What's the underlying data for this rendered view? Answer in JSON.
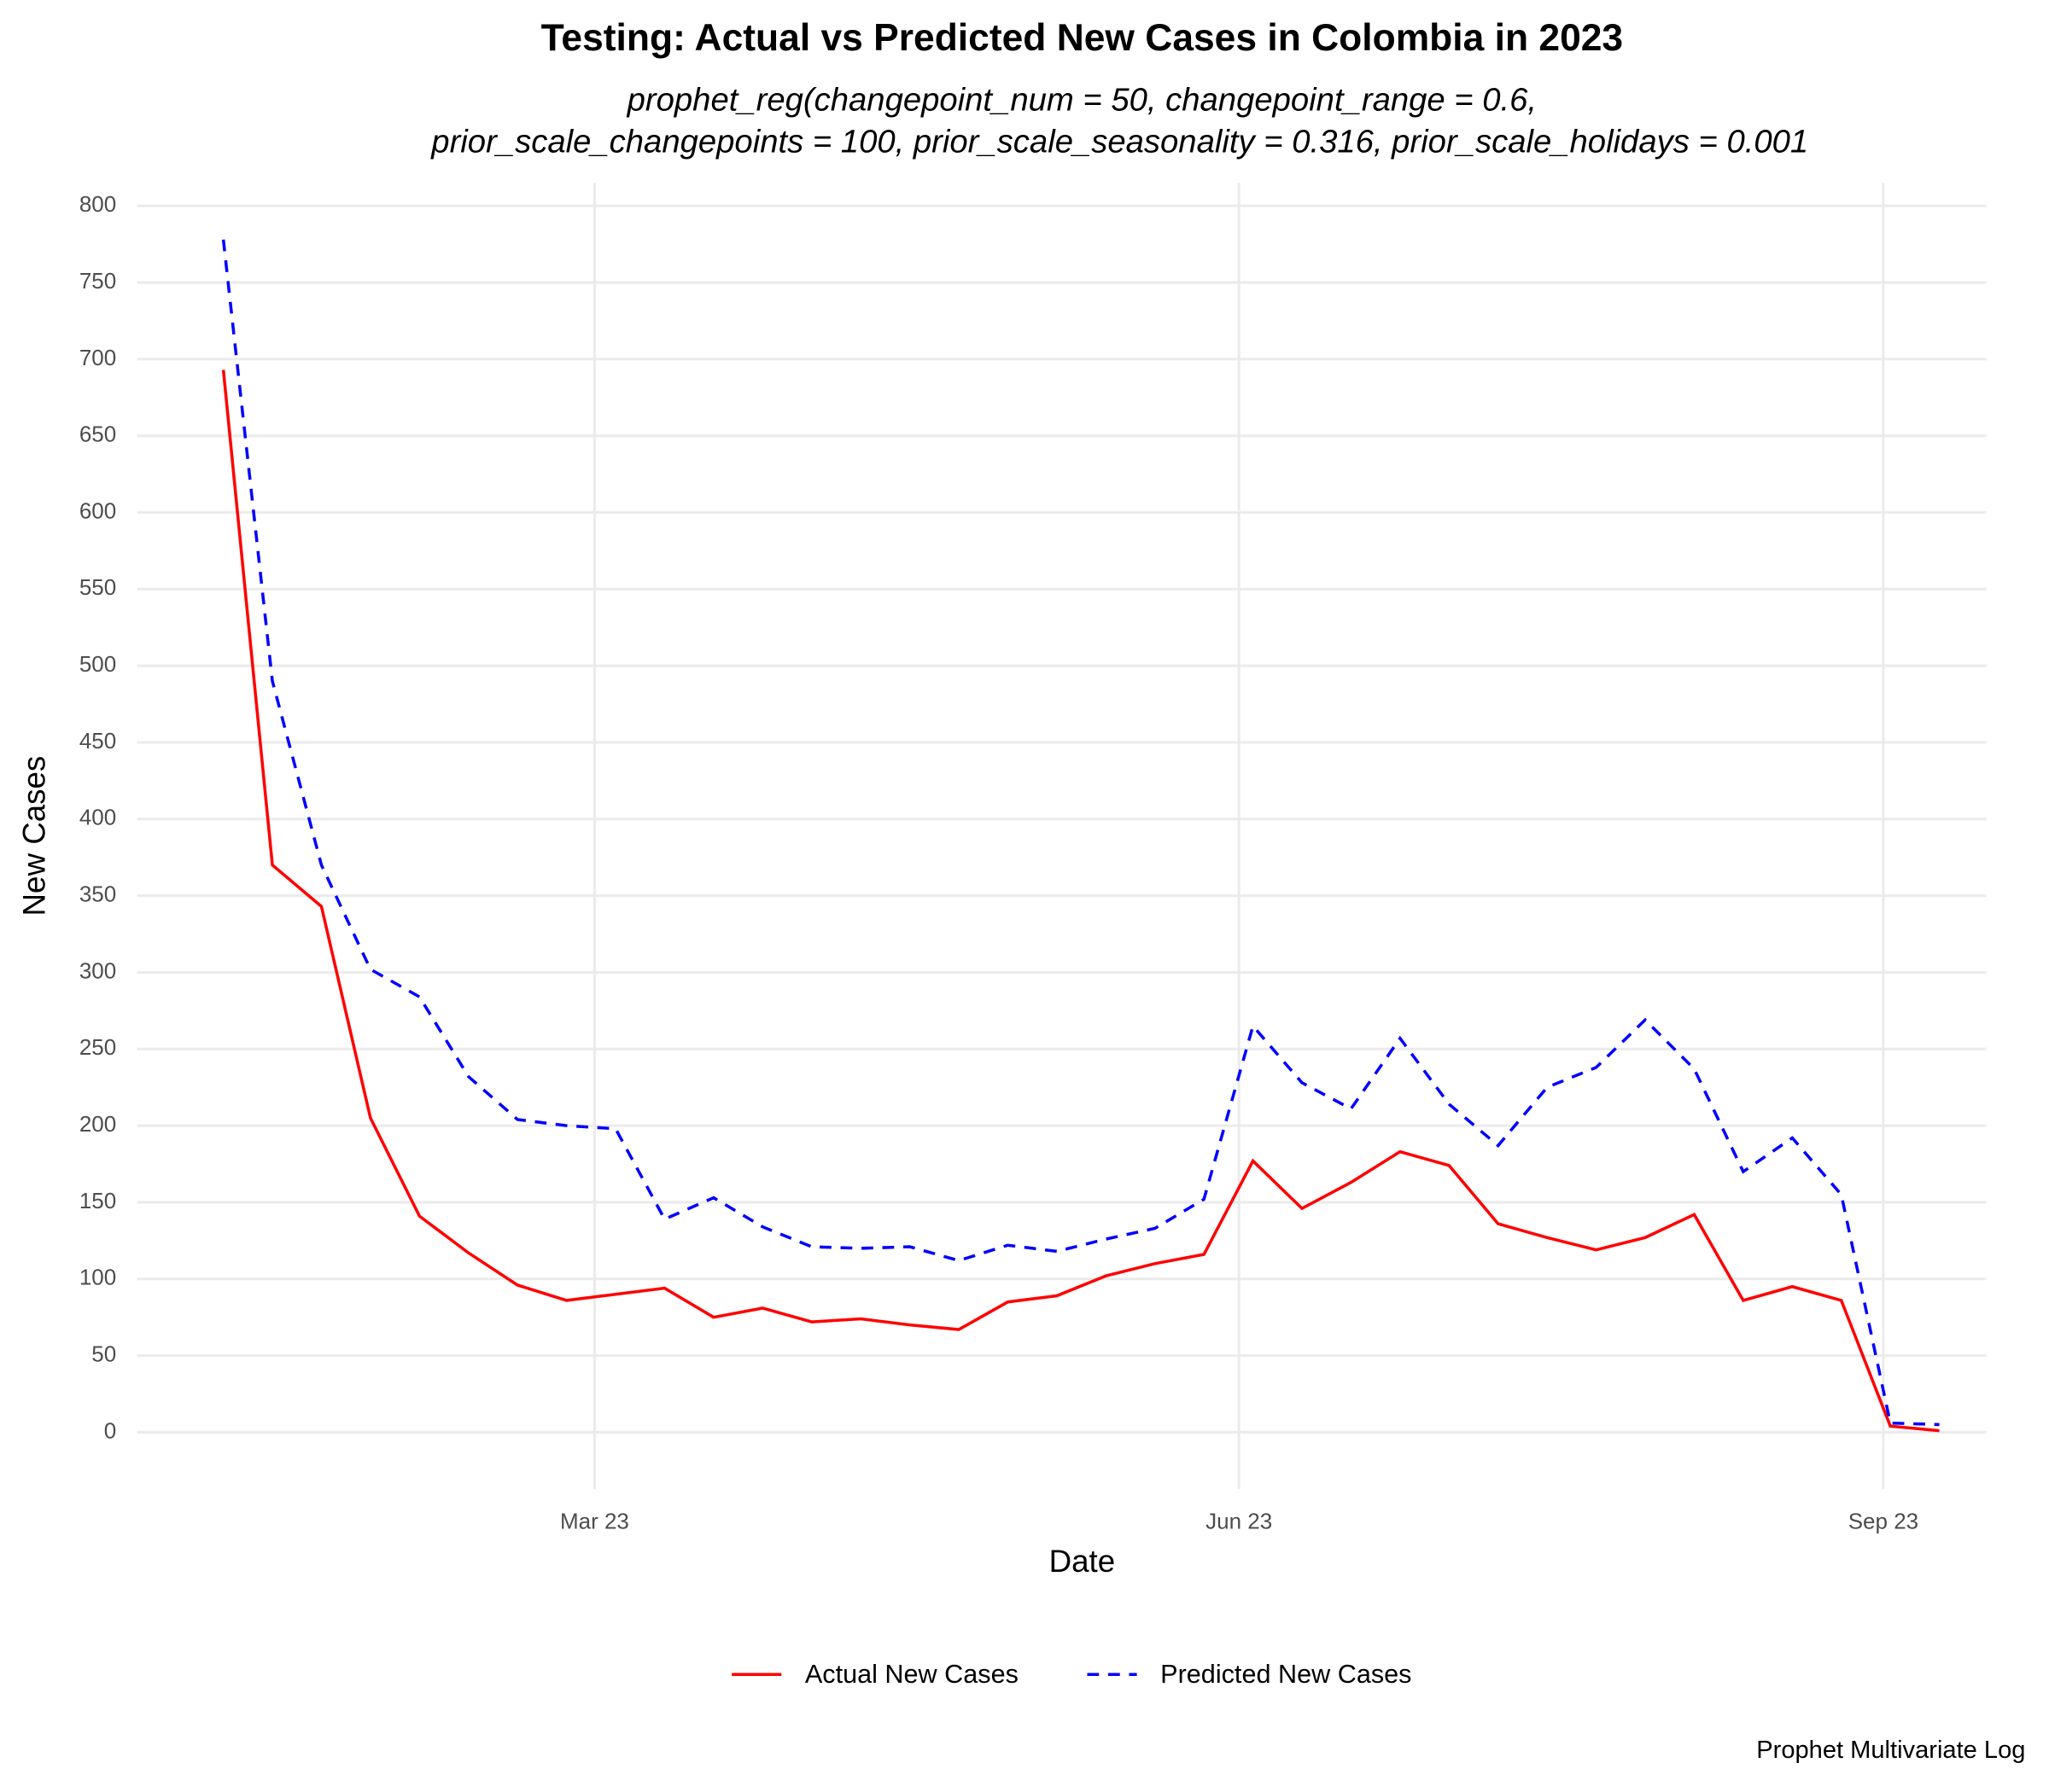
{
  "chart_data": {
    "type": "line",
    "title": "Testing: Actual vs Predicted New Cases in Colombia in 2023",
    "subtitle": [
      "prophet_reg(changepoint_num = 50, changepoint_range = 0.6,",
      "prior_scale_changepoints = 100, prior_scale_seasonality = 0.316, prior_scale_holidays = 0.001"
    ],
    "x_label": "Date",
    "y_label": "New Cases",
    "caption": "Prophet Multivariate Log",
    "x": [
      7,
      14,
      21,
      28,
      35,
      42,
      49,
      56,
      63,
      70,
      77,
      84,
      91,
      98,
      105,
      112,
      119,
      126,
      133,
      140,
      147,
      154,
      161,
      168,
      175,
      182,
      189,
      196,
      203,
      210,
      217,
      224,
      231,
      238,
      245,
      252
    ],
    "series": [
      {
        "name": "Actual New Cases",
        "color": "#ff0000",
        "linestyle": "solid",
        "values": [
          693,
          370,
          343,
          205,
          141,
          117,
          96,
          86,
          90,
          94,
          75,
          81,
          72,
          74,
          70,
          67,
          85,
          89,
          102,
          110,
          116,
          177,
          146,
          163,
          183,
          174,
          136,
          127,
          119,
          127,
          142,
          86,
          95,
          86,
          4,
          1
        ]
      },
      {
        "name": "Predicted New Cases",
        "color": "#0000ff",
        "linestyle": "dashed",
        "values": [
          778,
          490,
          370,
          302,
          284,
          232,
          204,
          200,
          198,
          139,
          153,
          134,
          121,
          120,
          121,
          112,
          122,
          118,
          126,
          133,
          152,
          265,
          228,
          211,
          257,
          214,
          187,
          225,
          238,
          269,
          237,
          170,
          192,
          155,
          6,
          5
        ]
      }
    ],
    "xlim": [
      -5.3,
      258.7
    ],
    "xticks": [
      {
        "value": 60,
        "label": "Mar 23"
      },
      {
        "value": 152,
        "label": "Jun 23"
      },
      {
        "value": 244,
        "label": "Sep 23"
      }
    ],
    "ylim": [
      -37,
      815
    ],
    "yticks": [
      0,
      50,
      100,
      150,
      200,
      250,
      300,
      350,
      400,
      450,
      500,
      550,
      600,
      650,
      700,
      750,
      800
    ],
    "grid": true,
    "legend": "bottom"
  }
}
